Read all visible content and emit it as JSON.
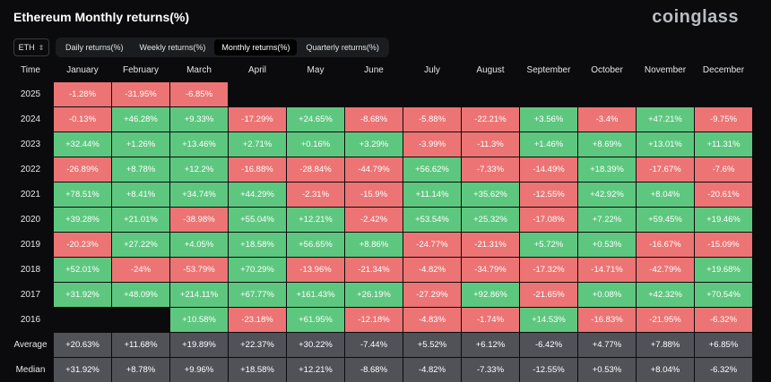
{
  "header": {
    "title": "Ethereum Monthly returns(%)",
    "brand": "coinglass"
  },
  "colors": {
    "positive": "#5ec77f",
    "negative": "#ec7474",
    "stat": "#505257",
    "background": "#0b0b0d"
  },
  "asset_select": {
    "value": "ETH",
    "icon": "chevron-updown-icon"
  },
  "tabs": [
    {
      "label": "Daily returns(%)",
      "active": false
    },
    {
      "label": "Weekly returns(%)",
      "active": false
    },
    {
      "label": "Monthly returns(%)",
      "active": true
    },
    {
      "label": "Quarterly returns(%)",
      "active": false
    }
  ],
  "table": {
    "columns": [
      "Time",
      "January",
      "February",
      "March",
      "April",
      "May",
      "June",
      "July",
      "August",
      "September",
      "October",
      "November",
      "December"
    ],
    "rows": [
      {
        "label": "2025",
        "type": "year",
        "values": [
          "-1.28%",
          "-31.95%",
          "-6.85%",
          "",
          "",
          "",
          "",
          "",
          "",
          "",
          "",
          ""
        ]
      },
      {
        "label": "2024",
        "type": "year",
        "values": [
          "-0.13%",
          "+46.28%",
          "+9.33%",
          "-17.29%",
          "+24.65%",
          "-8.68%",
          "-5.88%",
          "-22.21%",
          "+3.56%",
          "-3.4%",
          "+47.21%",
          "-9.75%"
        ]
      },
      {
        "label": "2023",
        "type": "year",
        "values": [
          "+32.44%",
          "+1.26%",
          "+13.46%",
          "+2.71%",
          "+0.16%",
          "+3.29%",
          "-3.99%",
          "-11.3%",
          "+1.46%",
          "+8.69%",
          "+13.01%",
          "+11.31%"
        ]
      },
      {
        "label": "2022",
        "type": "year",
        "values": [
          "-26.89%",
          "+8.78%",
          "+12.2%",
          "-16.88%",
          "-28.84%",
          "-44.79%",
          "+56.62%",
          "-7.33%",
          "-14.49%",
          "+18.39%",
          "-17.67%",
          "-7.6%"
        ]
      },
      {
        "label": "2021",
        "type": "year",
        "values": [
          "+78.51%",
          "+8.41%",
          "+34.74%",
          "+44.29%",
          "-2.31%",
          "-15.9%",
          "+11.14%",
          "+35.62%",
          "-12.55%",
          "+42.92%",
          "+8.04%",
          "-20.61%"
        ]
      },
      {
        "label": "2020",
        "type": "year",
        "values": [
          "+39.28%",
          "+21.01%",
          "-38.98%",
          "+55.04%",
          "+12.21%",
          "-2.42%",
          "+53.54%",
          "+25.32%",
          "-17.08%",
          "+7.22%",
          "+59.45%",
          "+19.46%"
        ]
      },
      {
        "label": "2019",
        "type": "year",
        "values": [
          "-20.23%",
          "+27.22%",
          "+4.05%",
          "+18.58%",
          "+56.65%",
          "+8.86%",
          "-24.77%",
          "-21.31%",
          "+5.72%",
          "+0.53%",
          "-16.67%",
          "-15.09%"
        ]
      },
      {
        "label": "2018",
        "type": "year",
        "values": [
          "+52.01%",
          "-24%",
          "-53.79%",
          "+70.29%",
          "-13.96%",
          "-21.34%",
          "-4.82%",
          "-34.79%",
          "-17.32%",
          "-14.71%",
          "-42.79%",
          "+19.68%"
        ]
      },
      {
        "label": "2017",
        "type": "year",
        "values": [
          "+31.92%",
          "+48.09%",
          "+214.11%",
          "+67.77%",
          "+161.43%",
          "+26.19%",
          "-27.29%",
          "+92.86%",
          "-21.65%",
          "+0.08%",
          "+42.32%",
          "+70.54%"
        ]
      },
      {
        "label": "2016",
        "type": "year",
        "values": [
          "",
          "",
          "+10.58%",
          "-23.18%",
          "+61.95%",
          "-12.18%",
          "-4.83%",
          "-1.74%",
          "+14.53%",
          "-16.83%",
          "-21.95%",
          "-6.32%"
        ]
      },
      {
        "label": "Average",
        "type": "stat",
        "values": [
          "+20.63%",
          "+11.68%",
          "+19.89%",
          "+22.37%",
          "+30.22%",
          "-7.44%",
          "+5.52%",
          "+6.12%",
          "-6.42%",
          "+4.77%",
          "+7.88%",
          "+6.85%"
        ]
      },
      {
        "label": "Median",
        "type": "stat",
        "values": [
          "+31.92%",
          "+8.78%",
          "+9.96%",
          "+18.58%",
          "+12.21%",
          "-8.68%",
          "-4.82%",
          "-7.33%",
          "-12.55%",
          "+0.53%",
          "+8.04%",
          "-6.32%"
        ]
      }
    ]
  }
}
